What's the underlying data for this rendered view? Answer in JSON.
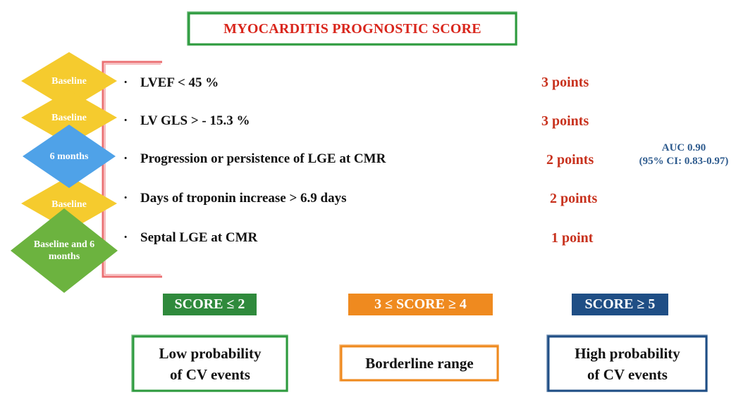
{
  "title": "MYOCARDITIS  PROGNOSTIC SCORE",
  "criteria": [
    {
      "timepoint": "Baseline",
      "timepoint_color": "#f5cb2e",
      "bullet": "·",
      "label": "LVEF < 45 %",
      "points": "3 points"
    },
    {
      "timepoint": "Baseline",
      "timepoint_color": "#f5cb2e",
      "bullet": "·",
      "label": "LV GLS  > - 15.3 %",
      "points": "3 points"
    },
    {
      "timepoint": "6 months",
      "timepoint_color": "#4fa2e8",
      "bullet": "·",
      "label": "Progression or persistence of LGE at CMR",
      "points": "2 points"
    },
    {
      "timepoint": "Baseline",
      "timepoint_color": "#f5cb2e",
      "bullet": "·",
      "label": "Days of troponin increase  > 6.9 days",
      "points": "2 points"
    },
    {
      "timepoint": "Baseline and 6 months",
      "timepoint_color": "#6cb33f",
      "bullet": "·",
      "label": "Septal  LGE  at CMR",
      "points": "1 point"
    }
  ],
  "auc": {
    "line1": "AUC 0.90",
    "line2": "(95% CI: 0.83-0.97)"
  },
  "scores": [
    {
      "label": "SCORE ≤ 2",
      "color": "#2f8a3c",
      "outcome_line1": "Low probability",
      "outcome_line2": "of CV events"
    },
    {
      "label": "3  ≤ SCORE ≥ 4",
      "color": "#ef8a1f",
      "outcome_line1": "Borderline range",
      "outcome_line2": ""
    },
    {
      "label": "SCORE ≥ 5",
      "color": "#1f4e85",
      "outcome_line1": "High probability",
      "outcome_line2": "of CV events"
    }
  ],
  "colors": {
    "title_frame": "#2e9b3f",
    "title_text": "#d9261c",
    "bracket": "#e8565a",
    "points_text": "#c8321e",
    "auc_text": "#2e5b8e"
  }
}
